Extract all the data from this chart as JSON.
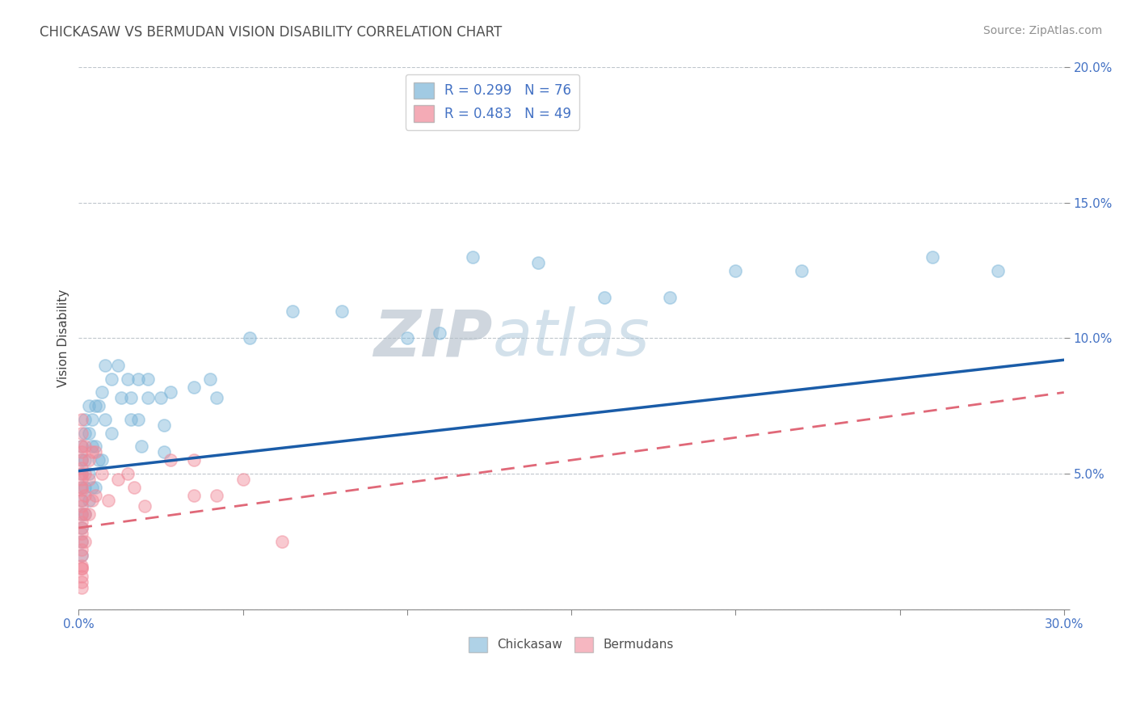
{
  "title": "CHICKASAW VS BERMUDAN VISION DISABILITY CORRELATION CHART",
  "source_text": "Source: ZipAtlas.com",
  "ylabel": "Vision Disability",
  "xlim": [
    0.0,
    0.3
  ],
  "ylim": [
    0.0,
    0.2
  ],
  "xticks": [
    0.0,
    0.05,
    0.1,
    0.15,
    0.2,
    0.25,
    0.3
  ],
  "yticks": [
    0.0,
    0.05,
    0.1,
    0.15,
    0.2
  ],
  "watermark": "ZIPatlas",
  "watermark_color": "#b8cfe0",
  "chickasaw_color": "#7ab4d8",
  "bermudan_color": "#f08898",
  "chickasaw_line_color": "#1a5ca8",
  "bermudan_line_color": "#e06878",
  "chickasaw_x": [
    0.001,
    0.001,
    0.001,
    0.001,
    0.001,
    0.001,
    0.001,
    0.001,
    0.002,
    0.002,
    0.002,
    0.002,
    0.002,
    0.003,
    0.003,
    0.003,
    0.003,
    0.004,
    0.004,
    0.004,
    0.005,
    0.005,
    0.005,
    0.006,
    0.006,
    0.007,
    0.007,
    0.008,
    0.008,
    0.01,
    0.01,
    0.012,
    0.013,
    0.015,
    0.016,
    0.016,
    0.018,
    0.018,
    0.019,
    0.021,
    0.021,
    0.025,
    0.026,
    0.026,
    0.028,
    0.035,
    0.04,
    0.042,
    0.052,
    0.065,
    0.08,
    0.1,
    0.11,
    0.12,
    0.14,
    0.16,
    0.18,
    0.2,
    0.22,
    0.26,
    0.28,
    0.001
  ],
  "chickasaw_y": [
    0.06,
    0.055,
    0.05,
    0.045,
    0.04,
    0.035,
    0.03,
    0.025,
    0.07,
    0.065,
    0.055,
    0.045,
    0.035,
    0.075,
    0.065,
    0.05,
    0.04,
    0.07,
    0.06,
    0.045,
    0.075,
    0.06,
    0.045,
    0.075,
    0.055,
    0.08,
    0.055,
    0.09,
    0.07,
    0.085,
    0.065,
    0.09,
    0.078,
    0.085,
    0.078,
    0.07,
    0.085,
    0.07,
    0.06,
    0.085,
    0.078,
    0.078,
    0.068,
    0.058,
    0.08,
    0.082,
    0.085,
    0.078,
    0.1,
    0.11,
    0.11,
    0.1,
    0.102,
    0.13,
    0.128,
    0.115,
    0.115,
    0.125,
    0.125,
    0.13,
    0.125,
    0.02
  ],
  "bermudan_x": [
    0.001,
    0.001,
    0.001,
    0.001,
    0.001,
    0.001,
    0.001,
    0.001,
    0.001,
    0.001,
    0.001,
    0.001,
    0.001,
    0.001,
    0.001,
    0.001,
    0.001,
    0.001,
    0.001,
    0.001,
    0.002,
    0.002,
    0.002,
    0.002,
    0.002,
    0.003,
    0.003,
    0.003,
    0.004,
    0.004,
    0.005,
    0.005,
    0.007,
    0.009,
    0.012,
    0.015,
    0.017,
    0.02,
    0.028,
    0.035,
    0.035,
    0.042,
    0.05,
    0.062,
    0.001,
    0.001,
    0.001,
    0.001,
    0.001
  ],
  "bermudan_y": [
    0.055,
    0.05,
    0.045,
    0.04,
    0.035,
    0.03,
    0.025,
    0.02,
    0.015,
    0.01,
    0.06,
    0.058,
    0.052,
    0.048,
    0.044,
    0.038,
    0.032,
    0.028,
    0.022,
    0.016,
    0.06,
    0.05,
    0.042,
    0.035,
    0.025,
    0.055,
    0.048,
    0.035,
    0.058,
    0.04,
    0.058,
    0.042,
    0.05,
    0.04,
    0.048,
    0.05,
    0.045,
    0.038,
    0.055,
    0.055,
    0.042,
    0.042,
    0.048,
    0.025,
    0.07,
    0.065,
    0.015,
    0.012,
    0.008
  ],
  "chick_line_x0": 0.0,
  "chick_line_y0": 0.051,
  "chick_line_x1": 0.3,
  "chick_line_y1": 0.092,
  "berm_line_x0": 0.0,
  "berm_line_y0": 0.03,
  "berm_line_x1": 0.3,
  "berm_line_y1": 0.08
}
